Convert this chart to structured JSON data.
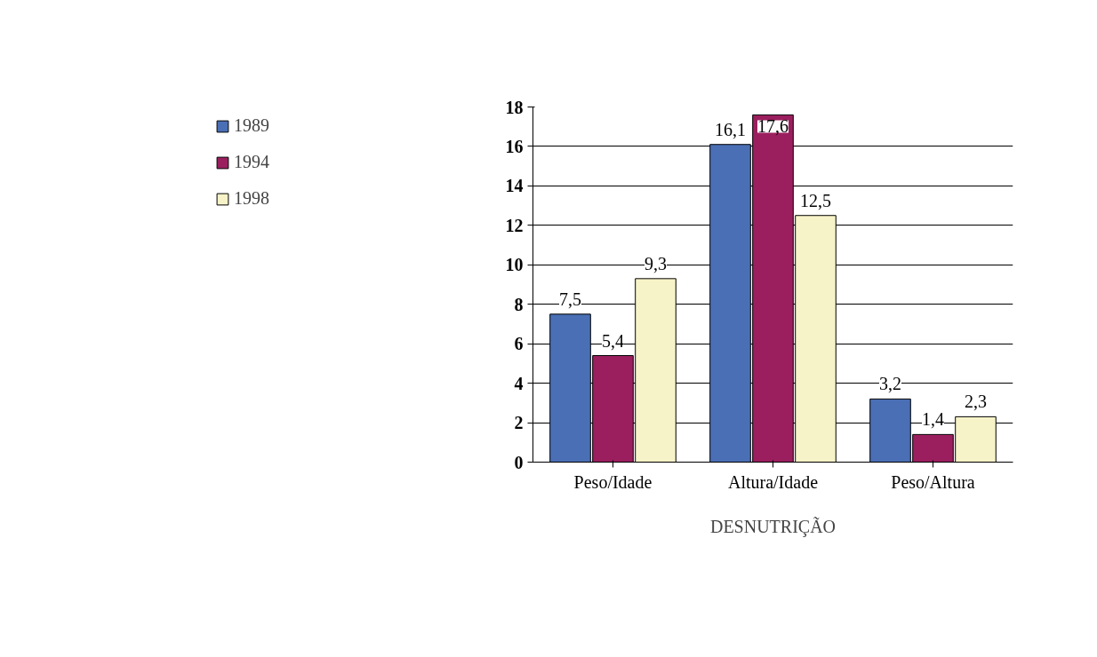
{
  "chart_data": {
    "type": "bar",
    "xlabel": "DESNUTRIÇÃO",
    "categories": [
      "Peso/Idade",
      "Altura/Idade",
      "Peso/Altura"
    ],
    "series": [
      {
        "name": "1989",
        "color": "#4a6fb5",
        "values": [
          7.5,
          16.1,
          3.2
        ],
        "value_labels": [
          "7,5",
          "16,1",
          "3,2"
        ]
      },
      {
        "name": "1994",
        "color": "#9b1f5e",
        "values": [
          5.4,
          17.6,
          1.4
        ],
        "value_labels": [
          "5,4",
          "17,6",
          "1,4"
        ]
      },
      {
        "name": "1998",
        "color": "#f7f3c8",
        "values": [
          9.3,
          12.5,
          2.3
        ],
        "value_labels": [
          "9,3",
          "12,5",
          "2,3"
        ]
      }
    ],
    "ylim": [
      0,
      18
    ],
    "yticks": [
      0,
      2,
      4,
      6,
      8,
      10,
      12,
      14,
      16,
      18
    ],
    "grid": "y",
    "legend": "left"
  }
}
